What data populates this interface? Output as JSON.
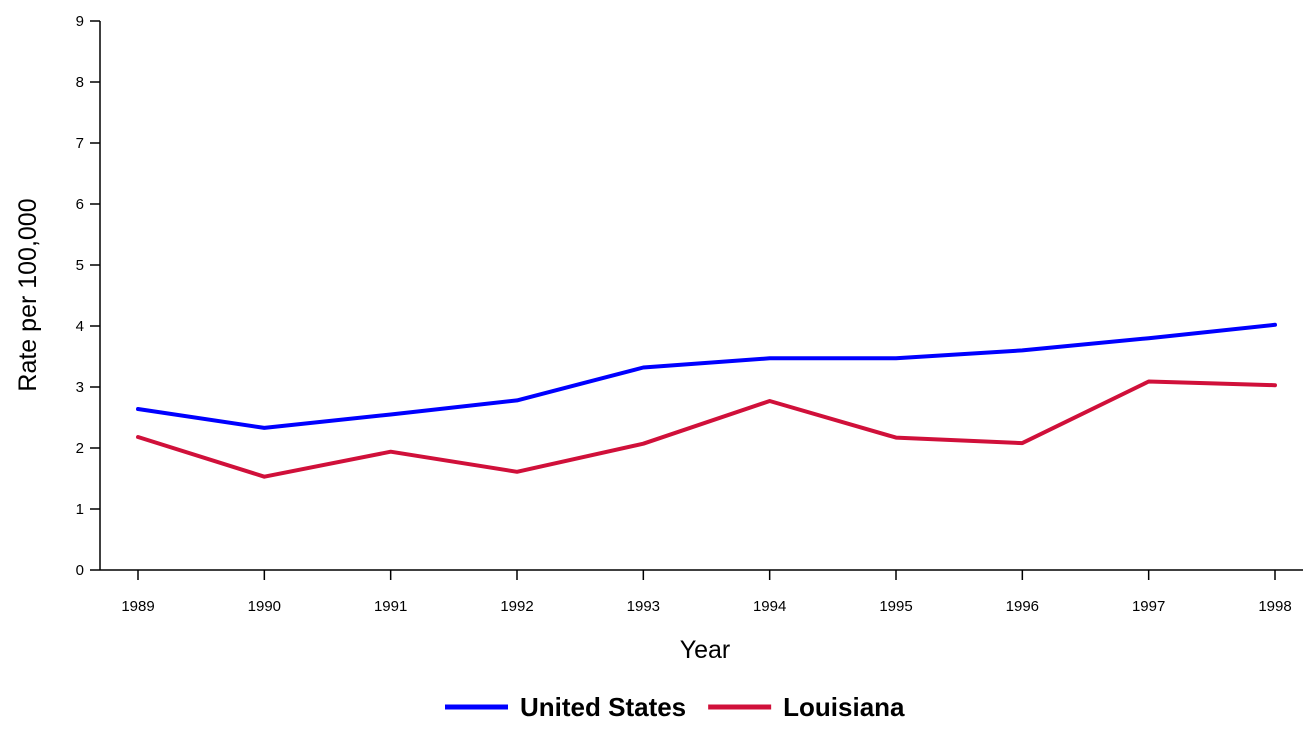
{
  "chart_data": {
    "type": "line",
    "title": "",
    "xlabel": "Year",
    "ylabel": "Rate per 100,000",
    "x": [
      "1989",
      "1990",
      "1991",
      "1992",
      "1993",
      "1994",
      "1995",
      "1996",
      "1997",
      "1998"
    ],
    "ylim": [
      0,
      9
    ],
    "yticks": [
      "0",
      "1",
      "2",
      "3",
      "4",
      "5",
      "6",
      "7",
      "8",
      "9"
    ],
    "grid": false,
    "legend_position": "bottom",
    "series": [
      {
        "name": "United States",
        "color": "#0000ff",
        "values": [
          2.64,
          2.33,
          2.55,
          2.78,
          3.32,
          3.47,
          3.47,
          3.6,
          3.8,
          4.02
        ]
      },
      {
        "name": "Louisiana",
        "color": "#d0103a",
        "values": [
          2.18,
          1.53,
          1.94,
          1.61,
          2.07,
          2.77,
          2.17,
          2.08,
          3.09,
          3.03
        ]
      }
    ]
  }
}
